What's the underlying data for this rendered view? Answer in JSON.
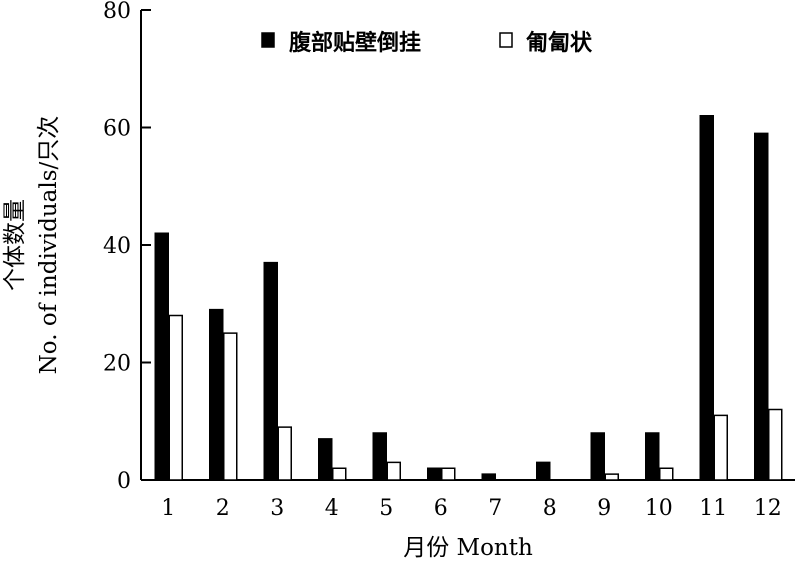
{
  "chart_data": {
    "type": "bar",
    "categories": [
      "1",
      "2",
      "3",
      "4",
      "5",
      "6",
      "7",
      "8",
      "9",
      "10",
      "11",
      "12"
    ],
    "series": [
      {
        "name": "腹部贴壁倒挂",
        "values": [
          42,
          29,
          37,
          7,
          8,
          2,
          1,
          3,
          8,
          8,
          62,
          59
        ],
        "color": "#000000"
      },
      {
        "name": "匍匐状",
        "values": [
          28,
          25,
          9,
          2,
          3,
          2,
          0,
          0,
          1,
          2,
          11,
          12
        ],
        "color": "#ffffff"
      }
    ],
    "xlabel": "月份 Month",
    "ylabel_line1": "个体数量",
    "ylabel_line2": "No. of individuals/只次",
    "ylim": [
      0,
      80
    ],
    "yticks": [
      "0",
      "20",
      "40",
      "60",
      "80"
    ],
    "legend_position": "top",
    "grid": false
  }
}
